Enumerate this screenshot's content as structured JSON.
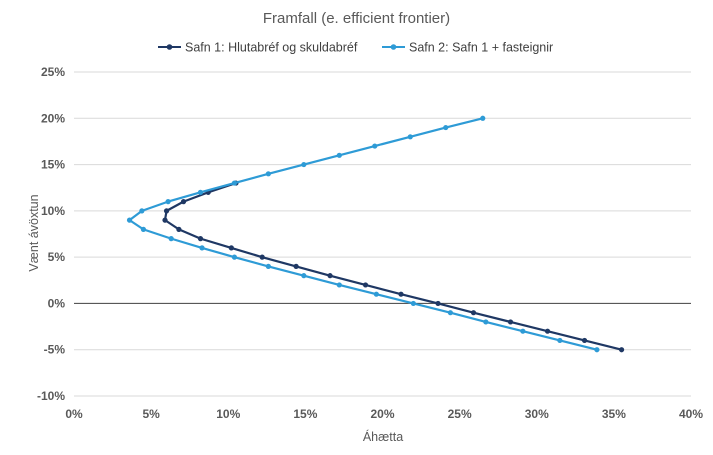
{
  "chart_data": {
    "type": "line",
    "title": "Framfall (e. efficient frontier)",
    "xlabel": "Áhætta",
    "ylabel": "Vænt ávöxtun",
    "xlim": [
      0,
      0.4
    ],
    "ylim": [
      -0.1,
      0.25
    ],
    "x_ticks": [
      {
        "value": 0.0,
        "label": "0%"
      },
      {
        "value": 0.05,
        "label": "5%"
      },
      {
        "value": 0.1,
        "label": "10%"
      },
      {
        "value": 0.15,
        "label": "15%"
      },
      {
        "value": 0.2,
        "label": "20%"
      },
      {
        "value": 0.25,
        "label": "25%"
      },
      {
        "value": 0.3,
        "label": "30%"
      },
      {
        "value": 0.35,
        "label": "35%"
      },
      {
        "value": 0.4,
        "label": "40%"
      }
    ],
    "y_ticks": [
      {
        "value": 0.25,
        "label": "25%"
      },
      {
        "value": 0.2,
        "label": "20%"
      },
      {
        "value": 0.15,
        "label": "15%"
      },
      {
        "value": 0.1,
        "label": "10%"
      },
      {
        "value": 0.05,
        "label": "5%"
      },
      {
        "value": 0.0,
        "label": "0%"
      },
      {
        "value": -0.05,
        "label": "-5%"
      },
      {
        "value": -0.1,
        "label": "-10%"
      }
    ],
    "grid": true,
    "legend_position": "top",
    "series": [
      {
        "name": "Safn 1: Hlutabréf og skuldabréf",
        "color": "#1f3864",
        "points": [
          {
            "x": 0.105,
            "y": 0.13
          },
          {
            "x": 0.087,
            "y": 0.12
          },
          {
            "x": 0.071,
            "y": 0.11
          },
          {
            "x": 0.06,
            "y": 0.1
          },
          {
            "x": 0.059,
            "y": 0.09
          },
          {
            "x": 0.068,
            "y": 0.08
          },
          {
            "x": 0.082,
            "y": 0.07
          },
          {
            "x": 0.102,
            "y": 0.06
          },
          {
            "x": 0.122,
            "y": 0.05
          },
          {
            "x": 0.144,
            "y": 0.04
          },
          {
            "x": 0.166,
            "y": 0.03
          },
          {
            "x": 0.189,
            "y": 0.02
          },
          {
            "x": 0.212,
            "y": 0.01
          },
          {
            "x": 0.236,
            "y": 0.0
          },
          {
            "x": 0.259,
            "y": -0.01
          },
          {
            "x": 0.283,
            "y": -0.02
          },
          {
            "x": 0.307,
            "y": -0.03
          },
          {
            "x": 0.331,
            "y": -0.04
          },
          {
            "x": 0.355,
            "y": -0.05
          }
        ]
      },
      {
        "name": "Safn 2: Safn 1 + fasteignir",
        "color": "#2e9bd6",
        "points": [
          {
            "x": 0.265,
            "y": 0.2
          },
          {
            "x": 0.241,
            "y": 0.19
          },
          {
            "x": 0.218,
            "y": 0.18
          },
          {
            "x": 0.195,
            "y": 0.17
          },
          {
            "x": 0.172,
            "y": 0.16
          },
          {
            "x": 0.149,
            "y": 0.15
          },
          {
            "x": 0.126,
            "y": 0.14
          },
          {
            "x": 0.104,
            "y": 0.13
          },
          {
            "x": 0.082,
            "y": 0.12
          },
          {
            "x": 0.061,
            "y": 0.11
          },
          {
            "x": 0.044,
            "y": 0.1
          },
          {
            "x": 0.036,
            "y": 0.09
          },
          {
            "x": 0.045,
            "y": 0.08
          },
          {
            "x": 0.063,
            "y": 0.07
          },
          {
            "x": 0.083,
            "y": 0.06
          },
          {
            "x": 0.104,
            "y": 0.05
          },
          {
            "x": 0.126,
            "y": 0.04
          },
          {
            "x": 0.149,
            "y": 0.03
          },
          {
            "x": 0.172,
            "y": 0.02
          },
          {
            "x": 0.196,
            "y": 0.01
          },
          {
            "x": 0.22,
            "y": 0.0
          },
          {
            "x": 0.244,
            "y": -0.01
          },
          {
            "x": 0.267,
            "y": -0.02
          },
          {
            "x": 0.291,
            "y": -0.03
          },
          {
            "x": 0.315,
            "y": -0.04
          },
          {
            "x": 0.339,
            "y": -0.05
          }
        ]
      }
    ]
  }
}
